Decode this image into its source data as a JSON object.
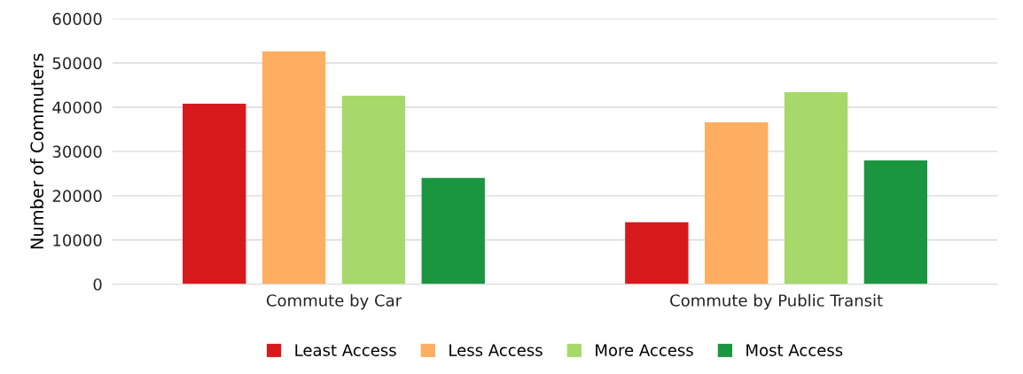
{
  "chart_data": {
    "type": "bar",
    "ylabel": "Number of Commuters",
    "categories": [
      "Commute by Car",
      "Commute by Public Transit"
    ],
    "series": [
      {
        "name": "Least Access",
        "color": "#d7191c",
        "values": [
          40800,
          14000
        ]
      },
      {
        "name": "Less Access",
        "color": "#fdae61",
        "values": [
          52600,
          36600
        ]
      },
      {
        "name": "More Access",
        "color": "#a6d96a",
        "values": [
          42600,
          43400
        ]
      },
      {
        "name": "Most Access",
        "color": "#1a9641",
        "values": [
          24000,
          28000
        ]
      }
    ],
    "ylim": [
      0,
      60000
    ],
    "yticks": [
      0,
      10000,
      20000,
      30000,
      40000,
      50000,
      60000
    ],
    "grid": "y",
    "legend": "bottom"
  }
}
